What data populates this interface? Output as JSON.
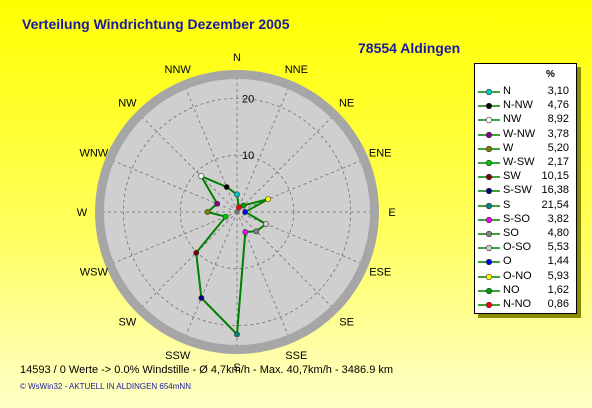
{
  "header": {
    "title": "Verteilung Windrichtung   Dezember 2005",
    "station": "78554 Aldingen"
  },
  "footer": {
    "stats": "14593 / 0 Werte  -> 0.0% Windstille   -  Ø 4,7km/h  -  Max. 40,7km/h   -   3486.9 km",
    "credit": "© WsWin32  -  AKTUELL IN ALDINGEN 654mNN"
  },
  "chart_data": {
    "type": "radar",
    "title": "Verteilung Windrichtung   Dezember 2005",
    "directions": [
      "N",
      "NNE",
      "NE",
      "ENE",
      "E",
      "ESE",
      "SE",
      "SSE",
      "S",
      "SSW",
      "SW",
      "WSW",
      "W",
      "WNW",
      "NW",
      "NNW"
    ],
    "radial_ticks": [
      {
        "value": 10,
        "label": "10"
      },
      {
        "value": 20,
        "label": "20"
      }
    ],
    "rmax": 25,
    "grid": true,
    "line_color": "#008000",
    "legend": {
      "unit": "%",
      "position": "right",
      "items": [
        {
          "name": "N",
          "value": 3.1,
          "label": "3,10",
          "color": "#00c8c8"
        },
        {
          "name": "N-NW",
          "value": 4.76,
          "label": "4,76",
          "color": "#000000"
        },
        {
          "name": "NW",
          "value": 8.92,
          "label": "8,92",
          "color": "#ffffff"
        },
        {
          "name": "W-NW",
          "value": 3.78,
          "label": "3,78",
          "color": "#8b008b"
        },
        {
          "name": "W",
          "value": 5.2,
          "label": "5,20",
          "color": "#808000"
        },
        {
          "name": "W-SW",
          "value": 2.17,
          "label": "2,17",
          "color": "#00c800"
        },
        {
          "name": "SW",
          "value": 10.15,
          "label": "10,15",
          "color": "#800000"
        },
        {
          "name": "S-SW",
          "value": 16.38,
          "label": "16,38",
          "color": "#000080"
        },
        {
          "name": "S",
          "value": 21.54,
          "label": "21,54",
          "color": "#008080"
        },
        {
          "name": "S-SO",
          "value": 3.82,
          "label": "3,82",
          "color": "#ff00ff"
        },
        {
          "name": "SO",
          "value": 4.8,
          "label": "4,80",
          "color": "#808080"
        },
        {
          "name": "O-SO",
          "value": 5.53,
          "label": "5,53",
          "color": "#d0d0d0"
        },
        {
          "name": "O",
          "value": 1.44,
          "label": "1,44",
          "color": "#0000ff"
        },
        {
          "name": "O-NO",
          "value": 5.93,
          "label": "5,93",
          "color": "#ffff00"
        },
        {
          "name": "NO",
          "value": 1.62,
          "label": "1,62",
          "color": "#00a000"
        },
        {
          "name": "N-NO",
          "value": 0.86,
          "label": "0,86",
          "color": "#ff0000"
        }
      ]
    }
  }
}
